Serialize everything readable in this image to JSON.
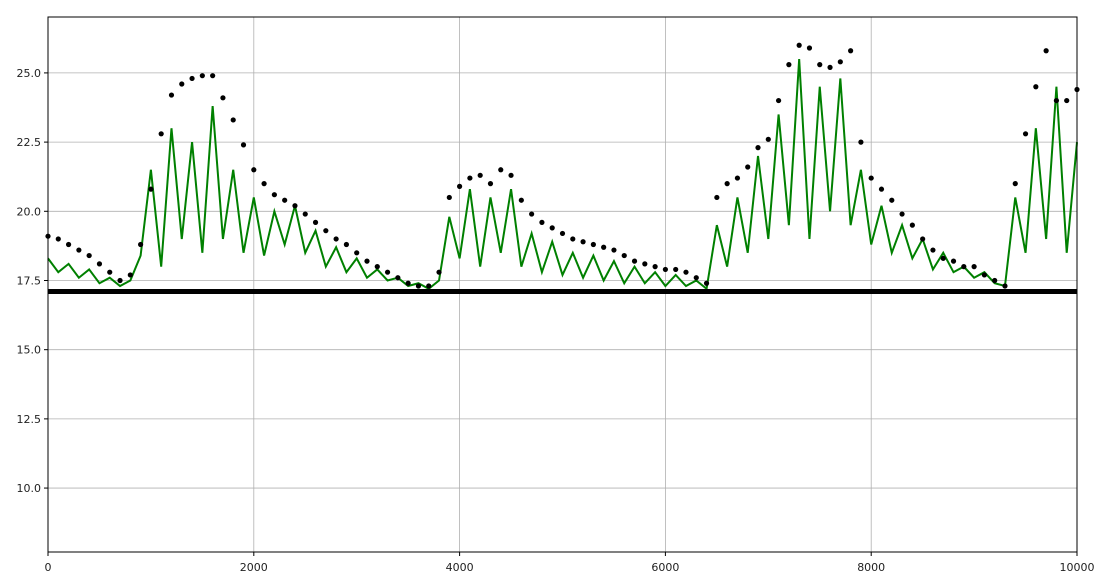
{
  "chart_data": {
    "type": "line",
    "x": [
      0,
      100,
      200,
      300,
      400,
      500,
      600,
      700,
      800,
      900,
      1000,
      1100,
      1200,
      1300,
      1400,
      1500,
      1600,
      1700,
      1800,
      1900,
      2000,
      2100,
      2200,
      2300,
      2400,
      2500,
      2600,
      2700,
      2800,
      2900,
      3000,
      3100,
      3200,
      3300,
      3400,
      3500,
      3600,
      3700,
      3800,
      3900,
      4000,
      4100,
      4200,
      4300,
      4400,
      4500,
      4600,
      4700,
      4800,
      4900,
      5000,
      5100,
      5200,
      5300,
      5400,
      5500,
      5600,
      5700,
      5800,
      5900,
      6000,
      6100,
      6200,
      6300,
      6400,
      6500,
      6600,
      6700,
      6800,
      6900,
      7000,
      7100,
      7200,
      7300,
      7400,
      7500,
      7600,
      7700,
      7800,
      7900,
      8000,
      8100,
      8200,
      8300,
      8400,
      8500,
      8600,
      8700,
      8800,
      8900,
      9000,
      9100,
      9200,
      9300,
      9400,
      9500,
      9600,
      9700,
      9800,
      9900,
      10000
    ],
    "series": [
      {
        "type": "line",
        "color": "#008000",
        "values": [
          18.3,
          17.8,
          18.1,
          17.6,
          17.9,
          17.4,
          17.6,
          17.3,
          17.5,
          18.4,
          21.5,
          18.0,
          23.0,
          19.0,
          22.5,
          18.5,
          23.8,
          19.0,
          21.5,
          18.5,
          20.5,
          18.4,
          20.0,
          18.8,
          20.2,
          18.5,
          19.3,
          18.0,
          18.7,
          17.8,
          18.3,
          17.6,
          17.9,
          17.5,
          17.6,
          17.3,
          17.4,
          17.2,
          17.5,
          19.8,
          18.3,
          20.8,
          18.0,
          20.5,
          18.5,
          20.8,
          18.0,
          19.2,
          17.8,
          18.9,
          17.7,
          18.5,
          17.6,
          18.4,
          17.5,
          18.2,
          17.4,
          18.0,
          17.4,
          17.8,
          17.3,
          17.7,
          17.3,
          17.5,
          17.2,
          19.5,
          18.0,
          20.5,
          18.5,
          22.0,
          19.0,
          23.5,
          19.5,
          25.5,
          19.0,
          24.5,
          20.0,
          24.8,
          19.5,
          21.5,
          18.8,
          20.2,
          18.5,
          19.5,
          18.3,
          19.0,
          17.9,
          18.5,
          17.8,
          18.0,
          17.6,
          17.8,
          17.4,
          17.3,
          20.5,
          18.5,
          23.0,
          19.0,
          24.5,
          18.5,
          22.5
        ]
      },
      {
        "type": "scatter",
        "color": "#000000",
        "values": [
          19.1,
          19.0,
          18.8,
          18.6,
          18.4,
          18.1,
          17.8,
          17.5,
          17.7,
          18.8,
          20.8,
          22.8,
          24.2,
          24.6,
          24.8,
          24.9,
          24.9,
          24.1,
          23.3,
          22.4,
          21.5,
          21.0,
          20.6,
          20.4,
          20.2,
          19.9,
          19.6,
          19.3,
          19.0,
          18.8,
          18.5,
          18.2,
          18.0,
          17.8,
          17.6,
          17.4,
          17.3,
          17.3,
          17.8,
          20.5,
          20.9,
          21.2,
          21.3,
          21.0,
          21.5,
          21.3,
          20.4,
          19.9,
          19.6,
          19.4,
          19.2,
          19.0,
          18.9,
          18.8,
          18.7,
          18.6,
          18.4,
          18.2,
          18.1,
          18.0,
          17.9,
          17.9,
          17.8,
          17.6,
          17.4,
          20.5,
          21.0,
          21.2,
          21.6,
          22.3,
          22.6,
          24.0,
          25.3,
          26.0,
          25.9,
          25.3,
          25.2,
          25.4,
          25.8,
          22.5,
          21.2,
          20.8,
          20.4,
          19.9,
          19.5,
          19.0,
          18.6,
          18.3,
          18.2,
          18.0,
          18.0,
          17.7,
          17.5,
          17.3,
          21.0,
          22.8,
          24.5,
          25.8,
          24.0,
          24.0,
          24.4
        ]
      },
      {
        "type": "line",
        "color": "#000000",
        "width": 5,
        "x": [
          0,
          10000
        ],
        "values": [
          17.1,
          17.1
        ]
      }
    ],
    "xlim": [
      0,
      10000
    ],
    "xticks": [
      0,
      2000,
      4000,
      6000,
      8000,
      10000
    ],
    "ylim": [
      7.69,
      27.02
    ],
    "yticks": [
      {
        "value": 10,
        "label": "10.0"
      },
      12.5,
      {
        "value": 15,
        "label": "15.0"
      },
      17.5,
      {
        "value": 20,
        "label": "20.0"
      },
      22.5,
      {
        "value": 25,
        "label": "25.0"
      }
    ],
    "grid": true
  }
}
